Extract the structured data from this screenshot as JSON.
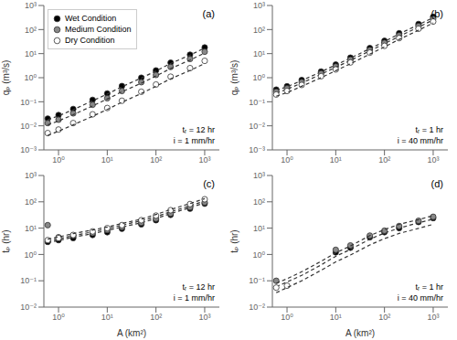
{
  "chart_data": [
    {
      "type": "scatter",
      "title": "(a)",
      "y_label": "qₚ (m³/s)",
      "annotation": "tᵣ = 12 hr\ni = 1 mm/hr",
      "log": true,
      "legend": "upper left",
      "marker": "circle",
      "line_style": "dashed",
      "xlim": [
        0.5,
        2000
      ],
      "ylim": [
        0.001,
        1000
      ],
      "xticks": [
        {
          "value": 1,
          "label": "10⁰"
        },
        {
          "value": 10,
          "label": "10¹"
        },
        {
          "value": 100,
          "label": "10²"
        },
        {
          "value": 1000,
          "label": "10³"
        }
      ],
      "yticks": [
        {
          "value": 0.001,
          "label": "10⁻³"
        },
        {
          "value": 0.01,
          "label": "10⁻²"
        },
        {
          "value": 0.1,
          "label": "10⁻¹"
        },
        {
          "value": 1,
          "label": "10⁰"
        },
        {
          "value": 10,
          "label": "10¹"
        },
        {
          "value": 100,
          "label": "10²"
        },
        {
          "value": 1000,
          "label": "10³"
        }
      ],
      "x": [
        0.6,
        1.0,
        2.0,
        5.0,
        10.0,
        20.0,
        50.0,
        100.0,
        200.0,
        500.0,
        1000.0
      ],
      "series": [
        {
          "name": "Wet Condition",
          "color": "#000000",
          "values": [
            0.02,
            0.028,
            0.05,
            0.12,
            0.22,
            0.45,
            1.0,
            2.0,
            4.2,
            9.0,
            18.0
          ],
          "fit": [
            0.018,
            0.026,
            0.047,
            0.11,
            0.21,
            0.42,
            0.97,
            1.9,
            3.9,
            8.7,
            17.0
          ]
        },
        {
          "name": "Medium Condition",
          "color": "#888888",
          "values": [
            0.013,
            0.018,
            0.033,
            0.075,
            0.14,
            0.28,
            0.65,
            1.3,
            2.8,
            6.0,
            12.0
          ],
          "fit": [
            0.011,
            0.016,
            0.029,
            0.067,
            0.13,
            0.26,
            0.59,
            1.18,
            2.4,
            5.4,
            10.6
          ]
        },
        {
          "name": "Dry Condition",
          "color": "#ffffff",
          "values": [
            0.005,
            0.007,
            0.013,
            0.03,
            0.055,
            0.11,
            0.26,
            0.52,
            1.1,
            2.5,
            5.0
          ],
          "fit": [
            0.004,
            0.006,
            0.011,
            0.025,
            0.048,
            0.096,
            0.22,
            0.44,
            0.9,
            2.0,
            3.9
          ]
        }
      ]
    },
    {
      "type": "scatter",
      "title": "(b)",
      "y_label": "qₚ (m³/s)",
      "annotation": "tᵣ = 1 hr\ni = 40 mm/hr",
      "log": true,
      "marker": "circle",
      "line_style": "dashed",
      "xlim": [
        0.5,
        2000
      ],
      "ylim": [
        0.001,
        1000
      ],
      "xticks": [
        {
          "value": 1,
          "label": "10⁰"
        },
        {
          "value": 10,
          "label": "10¹"
        },
        {
          "value": 100,
          "label": "10²"
        },
        {
          "value": 1000,
          "label": "10³"
        }
      ],
      "yticks": [
        {
          "value": 0.001,
          "label": "10⁻³"
        },
        {
          "value": 0.01,
          "label": "10⁻²"
        },
        {
          "value": 0.1,
          "label": "10⁻¹"
        },
        {
          "value": 1,
          "label": "10⁰"
        },
        {
          "value": 10,
          "label": "10¹"
        },
        {
          "value": 100,
          "label": "10²"
        },
        {
          "value": 1000,
          "label": "10³"
        }
      ],
      "x": [
        0.6,
        1.0,
        2.0,
        5.0,
        10.0,
        20.0,
        50.0,
        100.0,
        200.0,
        500.0,
        1000.0
      ],
      "series": [
        {
          "color": "#000000",
          "values": [
            0.32,
            0.44,
            0.8,
            1.8,
            3.5,
            6.8,
            17,
            34,
            70,
            170,
            340
          ],
          "fit": [
            0.3,
            0.42,
            0.76,
            1.75,
            3.4,
            6.5,
            16,
            32,
            66,
            158,
            315
          ]
        },
        {
          "color": "#888888",
          "values": [
            0.26,
            0.36,
            0.65,
            1.5,
            2.9,
            5.6,
            14,
            28,
            57,
            140,
            280
          ],
          "fit": [
            0.23,
            0.33,
            0.6,
            1.4,
            2.7,
            5.2,
            13,
            26,
            52,
            126,
            252
          ]
        },
        {
          "color": "#ffffff",
          "values": [
            0.2,
            0.28,
            0.5,
            1.15,
            2.2,
            4.3,
            11,
            21,
            44,
            108,
            215
          ],
          "fit": [
            0.17,
            0.24,
            0.44,
            1.0,
            1.95,
            3.8,
            9.5,
            19,
            39,
            94,
            188
          ]
        }
      ]
    },
    {
      "type": "scatter",
      "title": "(c)",
      "x_label": "A (km²)",
      "y_label": "tₚ (hr)",
      "annotation": "tᵣ = 12 hr\ni = 1 mm/hr",
      "log": true,
      "marker": "circle",
      "line_style": "dashed",
      "xlim": [
        0.5,
        2000
      ],
      "ylim": [
        0.01,
        1000
      ],
      "xticks": [
        {
          "value": 1,
          "label": "10⁰"
        },
        {
          "value": 10,
          "label": "10¹"
        },
        {
          "value": 100,
          "label": "10²"
        },
        {
          "value": 1000,
          "label": "10³"
        }
      ],
      "yticks": [
        {
          "value": 0.01,
          "label": "10⁻²"
        },
        {
          "value": 0.1,
          "label": "10⁻¹"
        },
        {
          "value": 1,
          "label": "10⁰"
        },
        {
          "value": 10,
          "label": "10¹"
        },
        {
          "value": 100,
          "label": "10²"
        },
        {
          "value": 1000,
          "label": "10³"
        }
      ],
      "x": [
        0.6,
        1.0,
        2.0,
        5.0,
        10.0,
        20.0,
        50.0,
        100.0,
        200.0,
        500.0,
        1000.0
      ],
      "series": [
        {
          "color": "#000000",
          "values": [
            3.0,
            3.5,
            4.2,
            5.5,
            7.0,
            9.5,
            14,
            20,
            32,
            55,
            85
          ],
          "fit": [
            2.8,
            3.4,
            4.5,
            6.2,
            8.2,
            11,
            16,
            23,
            36,
            60,
            92
          ]
        },
        {
          "color": "#888888",
          "values": [
            13.0,
            4.5,
            5.2,
            6.5,
            8.5,
            11,
            16,
            23,
            36,
            62,
            95
          ],
          "fit": [
            3.2,
            3.9,
            5.2,
            7.2,
            9.5,
            13,
            19,
            27,
            42,
            70,
            108
          ]
        },
        {
          "color": "#ffffff",
          "values": [
            3.5,
            4.2,
            5.5,
            7.5,
            10,
            13,
            20,
            30,
            48,
            82,
            125
          ],
          "fit": [
            3.8,
            4.6,
            6.2,
            8.5,
            11,
            15,
            22,
            33,
            51,
            86,
            132
          ]
        }
      ]
    },
    {
      "type": "scatter",
      "title": "(d)",
      "x_label": "A (km²)",
      "y_label": "tₚ (hr)",
      "annotation": "tᵣ = 1 hr\ni = 40 mm/hr",
      "log": true,
      "marker": "circle",
      "line_style": "dashed",
      "xlim": [
        0.5,
        2000
      ],
      "ylim": [
        0.01,
        1000
      ],
      "xticks": [
        {
          "value": 1,
          "label": "10⁰"
        },
        {
          "value": 10,
          "label": "10¹"
        },
        {
          "value": 100,
          "label": "10²"
        },
        {
          "value": 1000,
          "label": "10³"
        }
      ],
      "yticks": [
        {
          "value": 0.01,
          "label": "10⁻²"
        },
        {
          "value": 0.1,
          "label": "10⁻¹"
        },
        {
          "value": 1,
          "label": "10⁰"
        },
        {
          "value": 10,
          "label": "10¹"
        },
        {
          "value": 100,
          "label": "10²"
        },
        {
          "value": 1000,
          "label": "10³"
        }
      ],
      "x": [
        0.6,
        1.0,
        2.0,
        5.0,
        10.0,
        20.0,
        50.0,
        100.0,
        200.0,
        500.0,
        1000.0
      ],
      "series": [
        {
          "color": "#000000",
          "values": [
            null,
            null,
            null,
            null,
            1.2,
            1.8,
            4.5,
            7.0,
            10,
            17,
            24
          ],
          "fit": [
            0.06,
            0.09,
            0.16,
            0.4,
            0.85,
            1.55,
            3.8,
            6.5,
            10,
            16,
            22
          ]
        },
        {
          "color": "#888888",
          "values": [
            0.1,
            null,
            null,
            null,
            1.5,
            2.2,
            5.2,
            8.0,
            12,
            19,
            27
          ],
          "fit": [
            0.08,
            0.12,
            0.22,
            0.55,
            1.15,
            2.1,
            5.2,
            8.8,
            14,
            21,
            30
          ]
        },
        {
          "color": "#ffffff",
          "values": [
            0.055,
            0.065,
            null,
            null,
            null,
            null,
            null,
            null,
            null,
            null,
            null
          ],
          "fit": [
            0.035,
            0.055,
            0.1,
            0.25,
            0.52,
            0.95,
            2.3,
            4.0,
            6.3,
            9.8,
            14
          ]
        }
      ]
    }
  ]
}
